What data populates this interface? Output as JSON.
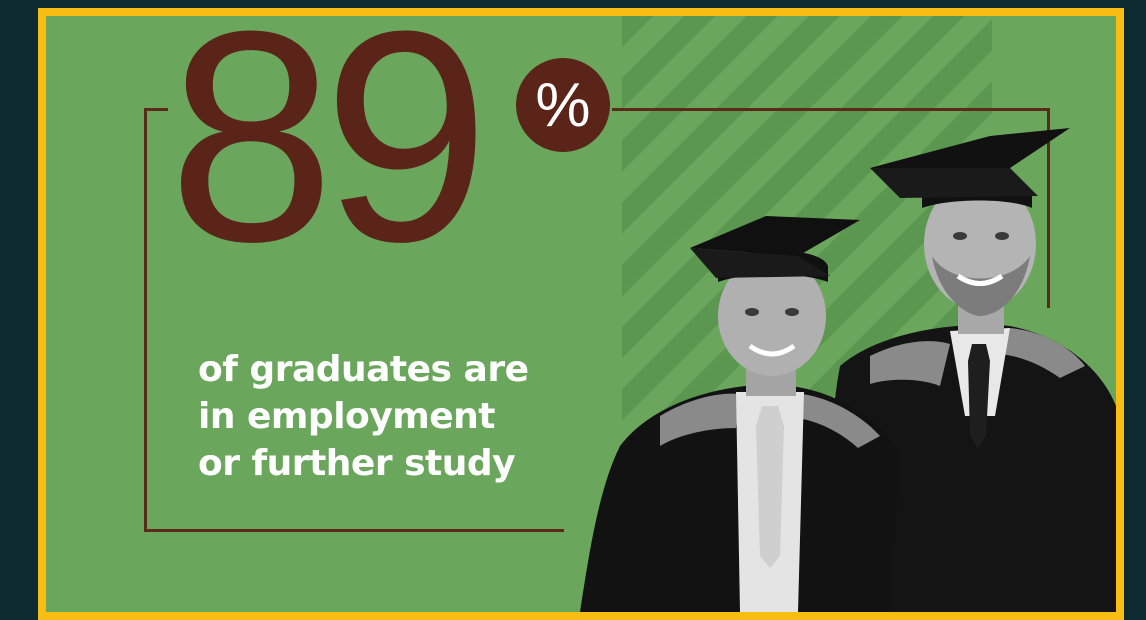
{
  "stat": {
    "number": "89",
    "percent_sign": "%"
  },
  "caption": {
    "line1": "of graduates are",
    "line2": "in employment",
    "line3": "or further study"
  },
  "colors": {
    "background": "#0d2a30",
    "border": "#f7bd12",
    "panel": "#6ba65d",
    "stripe": "#5b9650",
    "accent": "#5a2418",
    "text": "#ffffff"
  },
  "photo": {
    "subject": "graduates-photo"
  }
}
